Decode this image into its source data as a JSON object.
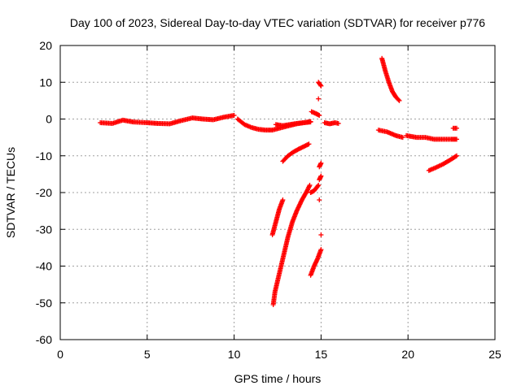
{
  "chart_data": {
    "type": "scatter",
    "title": "Day 100 of 2023, Sidereal Day-to-day VTEC variation (SDTVAR) for receiver p776",
    "xlabel": "GPS time / hours",
    "ylabel": "SDTVAR / TECUs",
    "xlim": [
      0,
      25
    ],
    "ylim": [
      -60,
      20
    ],
    "xticks": [
      0,
      5,
      10,
      15,
      20,
      25
    ],
    "yticks": [
      -60,
      -50,
      -40,
      -30,
      -20,
      -10,
      0,
      10,
      20
    ],
    "grid": true,
    "marker": "plus",
    "color": "#ff0000",
    "segments": [
      {
        "x": [
          2.3,
          3.0,
          3.6,
          4.2,
          5.0,
          5.6,
          6.3,
          6.9,
          7.6,
          8.2,
          8.8,
          9.4,
          10.0
        ],
        "y": [
          -1.0,
          -1.2,
          -0.3,
          -0.8,
          -1.0,
          -1.2,
          -1.3,
          -0.5,
          0.3,
          0.0,
          -0.2,
          0.5,
          1.0
        ]
      },
      {
        "x": [
          10.2,
          10.6,
          11.0,
          11.4,
          11.8,
          12.2,
          12.6,
          13.0,
          13.6,
          14.0,
          14.4
        ],
        "y": [
          0.0,
          -1.5,
          -2.3,
          -2.8,
          -3.0,
          -3.0,
          -2.5,
          -2.0,
          -1.3,
          -1.0,
          -0.8
        ]
      },
      {
        "x": [
          12.4,
          12.8,
          13.2,
          13.6,
          14.0,
          14.4
        ],
        "y": [
          -1.5,
          -1.8,
          -1.5,
          -1.2,
          -1.0,
          -0.7
        ]
      },
      {
        "x": [
          12.8,
          13.1,
          13.4,
          13.7,
          14.0,
          14.3
        ],
        "y": [
          -11.5,
          -10.0,
          -9.0,
          -8.2,
          -7.5,
          -6.8
        ]
      },
      {
        "x": [
          12.25,
          12.35,
          12.5,
          12.7,
          12.9,
          13.1,
          13.35,
          13.6,
          13.9,
          14.2,
          14.35
        ],
        "y": [
          -50.5,
          -47.0,
          -44.0,
          -40.0,
          -36.0,
          -32.0,
          -28.0,
          -25.0,
          -22.0,
          -19.5,
          -18.0
        ]
      },
      {
        "x": [
          12.2,
          12.4,
          12.6,
          12.8
        ],
        "y": [
          -31.5,
          -28.0,
          -24.5,
          -22.0
        ]
      },
      {
        "x": [
          14.4,
          14.6,
          14.8,
          15.0
        ],
        "y": [
          -42.5,
          -40.0,
          -38.0,
          -35.5
        ]
      },
      {
        "x": [
          14.4,
          14.6,
          14.85
        ],
        "y": [
          -20.0,
          -19.5,
          -18.0
        ]
      },
      {
        "x": [
          14.9,
          15.0
        ],
        "y": [
          -16.5,
          -15.5
        ]
      },
      {
        "x": [
          14.9,
          15.0
        ],
        "y": [
          -13.0,
          -12.0
        ]
      },
      {
        "x": [
          14.85,
          15.0
        ],
        "y": [
          10.0,
          9.0
        ]
      },
      {
        "x": [
          14.85
        ],
        "y": [
          5.5
        ]
      },
      {
        "x": [
          14.45,
          14.7,
          14.9
        ],
        "y": [
          2.0,
          1.5,
          1.0
        ]
      },
      {
        "x": [
          14.9
        ],
        "y": [
          -22.0
        ]
      },
      {
        "x": [
          15.0
        ],
        "y": [
          -31.5
        ]
      },
      {
        "x": [
          15.2,
          15.5,
          15.8,
          16.0
        ],
        "y": [
          -1.0,
          -1.3,
          -1.0,
          -1.2
        ]
      },
      {
        "x": [
          18.5,
          18.7,
          18.9,
          19.1,
          19.3,
          19.5
        ],
        "y": [
          16.5,
          13.0,
          10.0,
          7.5,
          6.0,
          5.0
        ]
      },
      {
        "x": [
          18.3,
          18.8,
          19.3,
          19.7
        ],
        "y": [
          -3.0,
          -3.5,
          -4.5,
          -5.0
        ]
      },
      {
        "x": [
          19.9,
          20.5,
          21.0,
          21.5,
          22.0,
          22.5,
          22.8
        ],
        "y": [
          -4.5,
          -5.0,
          -5.0,
          -5.5,
          -5.5,
          -5.5,
          -5.5
        ]
      },
      {
        "x": [
          22.6,
          22.8
        ],
        "y": [
          -2.5,
          -2.5
        ]
      },
      {
        "x": [
          21.2,
          21.6,
          22.0,
          22.4,
          22.8
        ],
        "y": [
          -14.0,
          -13.2,
          -12.3,
          -11.2,
          -10.0
        ]
      }
    ]
  }
}
